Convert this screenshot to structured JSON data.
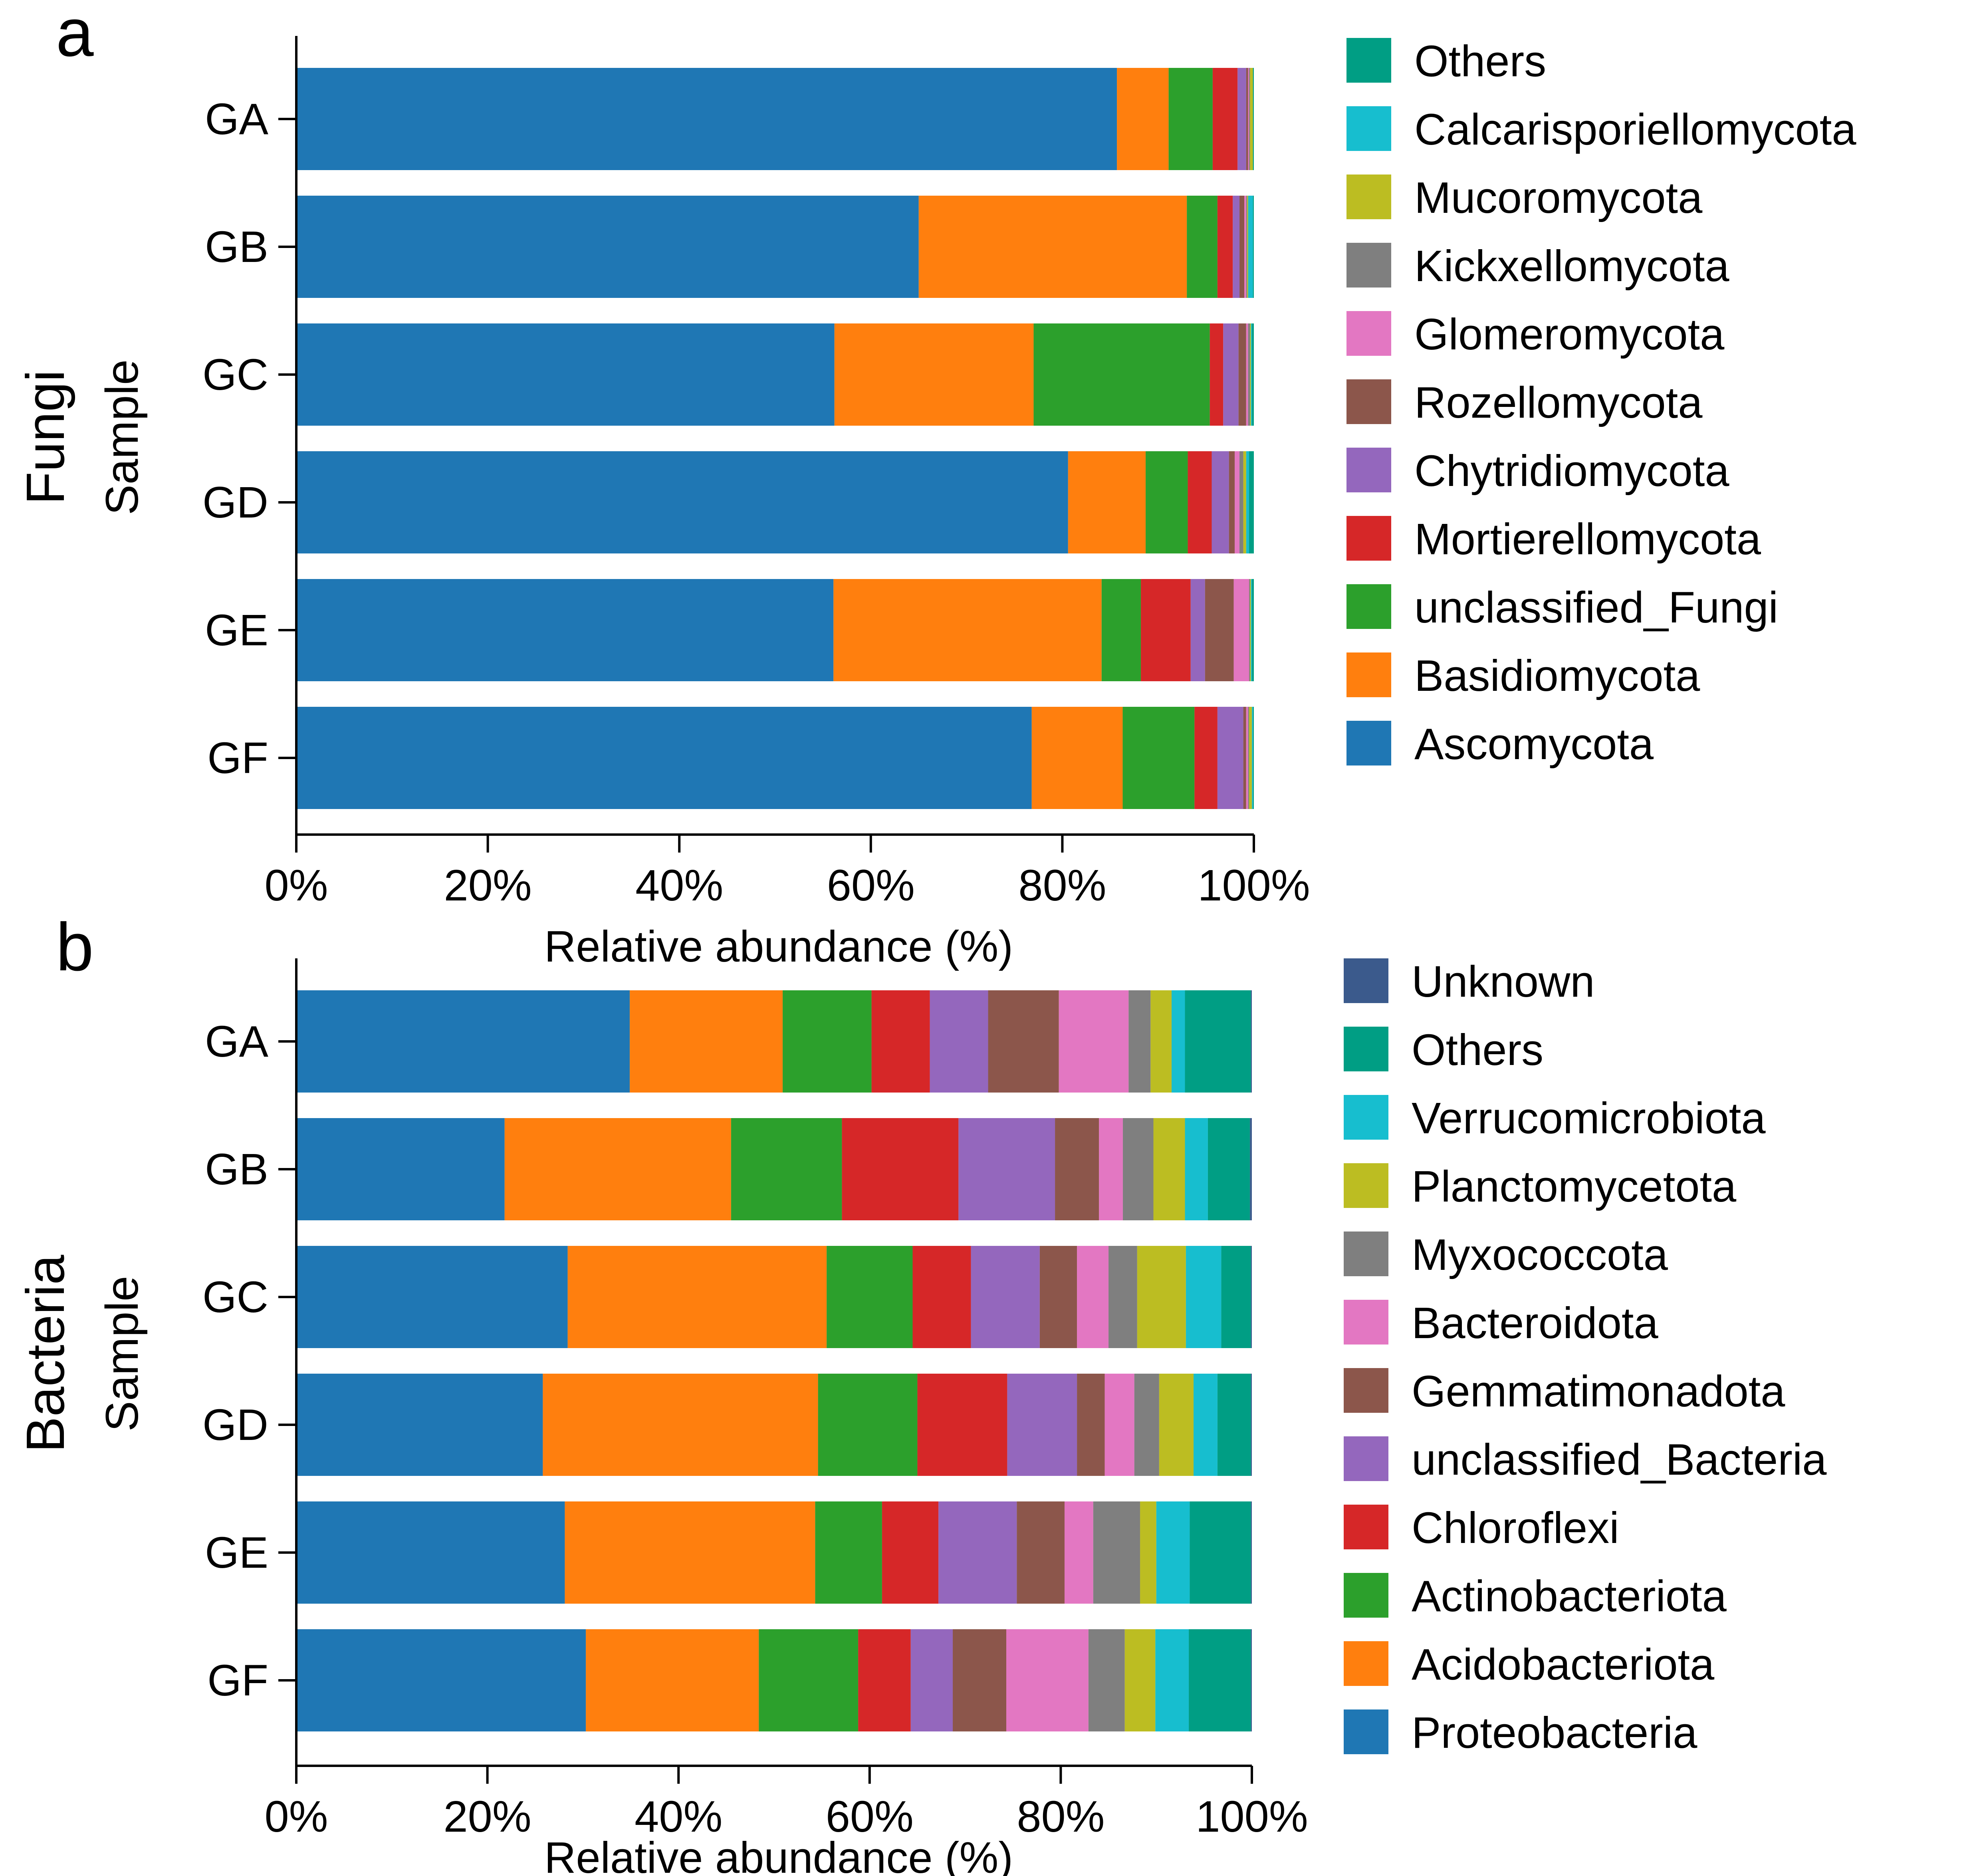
{
  "figure": {
    "panel_a_letter": "a",
    "panel_b_letter": "b",
    "panel_a_group": "Fungi",
    "panel_b_group": "Bacteria",
    "panel_a_group_color": "#2ca02c",
    "panel_b_group_color": "#d62728"
  },
  "chart_data": [
    {
      "type": "bar",
      "orientation": "horizontal",
      "stacked": true,
      "title": "",
      "xlabel": "Relative abundance (%)",
      "ylabel": "Sample",
      "xlim": [
        0,
        100
      ],
      "xticks": [
        "0%",
        "20%",
        "40%",
        "60%",
        "80%",
        "100%"
      ],
      "grid": false,
      "legend_position": "right",
      "categories": [
        "GA",
        "GB",
        "GC",
        "GD",
        "GE",
        "GF"
      ],
      "series": [
        {
          "name": "Ascomycota",
          "color": "#1f77b4",
          "values": [
            85.7,
            65.0,
            56.2,
            80.6,
            56.1,
            76.8
          ]
        },
        {
          "name": "Basidiomycota",
          "color": "#ff7f0e",
          "values": [
            5.4,
            28.0,
            20.8,
            8.1,
            28.0,
            9.5
          ]
        },
        {
          "name": "unclassified_Fungi",
          "color": "#2ca02c",
          "values": [
            4.6,
            3.2,
            18.4,
            4.4,
            4.1,
            7.5
          ]
        },
        {
          "name": "Mortierellomycota",
          "color": "#d62728",
          "values": [
            2.6,
            1.6,
            1.4,
            2.5,
            5.2,
            2.4
          ]
        },
        {
          "name": "Chytridiomycota",
          "color": "#9467bd",
          "values": [
            0.9,
            0.7,
            1.6,
            1.8,
            1.5,
            2.7
          ]
        },
        {
          "name": "Rozellomycota",
          "color": "#8c564b",
          "values": [
            0.2,
            0.5,
            0.8,
            0.6,
            3.0,
            0.3
          ]
        },
        {
          "name": "Glomeromycota",
          "color": "#e377c2",
          "values": [
            0.1,
            0.2,
            0.2,
            0.5,
            1.6,
            0.2
          ]
        },
        {
          "name": "Kickxellomycota",
          "color": "#7f7f7f",
          "values": [
            0.1,
            0.1,
            0.2,
            0.4,
            0.1,
            0.1
          ]
        },
        {
          "name": "Mucoromycota",
          "color": "#bcbd22",
          "values": [
            0.3,
            0.1,
            0.1,
            0.3,
            0.1,
            0.3
          ]
        },
        {
          "name": "Calcarisporiellomycota",
          "color": "#17becf",
          "values": [
            0.0,
            0.5,
            0.1,
            0.3,
            0.1,
            0.1
          ]
        },
        {
          "name": "Others",
          "color": "#009e84",
          "values": [
            0.1,
            0.1,
            0.2,
            0.5,
            0.2,
            0.1
          ]
        }
      ]
    },
    {
      "type": "bar",
      "orientation": "horizontal",
      "stacked": true,
      "title": "",
      "xlabel": "Relative abundance (%)",
      "ylabel": "Sample",
      "xlim": [
        0,
        100
      ],
      "xticks": [
        "0%",
        "20%",
        "40%",
        "60%",
        "80%",
        "100%"
      ],
      "grid": false,
      "legend_position": "right",
      "categories": [
        "GA",
        "GB",
        "GC",
        "GD",
        "GE",
        "GF"
      ],
      "series": [
        {
          "name": "Proteobacteria",
          "color": "#1f77b4",
          "values": [
            34.9,
            21.8,
            28.4,
            25.8,
            28.1,
            30.3
          ]
        },
        {
          "name": "Acidobacteriota",
          "color": "#ff7f0e",
          "values": [
            16.0,
            23.7,
            27.1,
            28.8,
            26.2,
            18.1
          ]
        },
        {
          "name": "Actinobacteriota",
          "color": "#2ca02c",
          "values": [
            9.3,
            11.6,
            9.0,
            10.4,
            7.0,
            10.4
          ]
        },
        {
          "name": "Chloroflexi",
          "color": "#d62728",
          "values": [
            6.1,
            12.2,
            6.1,
            9.4,
            5.9,
            5.5
          ]
        },
        {
          "name": "unclassified_Bacteria",
          "color": "#9467bd",
          "values": [
            6.1,
            10.1,
            7.2,
            7.3,
            8.2,
            4.4
          ]
        },
        {
          "name": "Gemmatimonadota",
          "color": "#8c564b",
          "values": [
            7.4,
            4.6,
            3.9,
            2.9,
            5.0,
            5.6
          ]
        },
        {
          "name": "Bacteroidota",
          "color": "#e377c2",
          "values": [
            7.3,
            2.5,
            3.3,
            3.1,
            3.0,
            8.6
          ]
        },
        {
          "name": "Myxococcota",
          "color": "#7f7f7f",
          "values": [
            2.3,
            3.2,
            3.0,
            2.6,
            4.9,
            3.8
          ]
        },
        {
          "name": "Planctomycetota",
          "color": "#bcbd22",
          "values": [
            2.2,
            3.3,
            5.1,
            3.6,
            1.7,
            3.2
          ]
        },
        {
          "name": "Verrucomicrobiota",
          "color": "#17becf",
          "values": [
            1.4,
            2.4,
            3.7,
            2.5,
            3.5,
            3.5
          ]
        },
        {
          "name": "Others",
          "color": "#009e84",
          "values": [
            6.9,
            4.4,
            3.1,
            3.5,
            6.4,
            6.5
          ]
        },
        {
          "name": "Unknown",
          "color": "#3b5a8c",
          "values": [
            0.1,
            0.2,
            0.1,
            0.1,
            0.1,
            0.1
          ]
        }
      ]
    }
  ]
}
